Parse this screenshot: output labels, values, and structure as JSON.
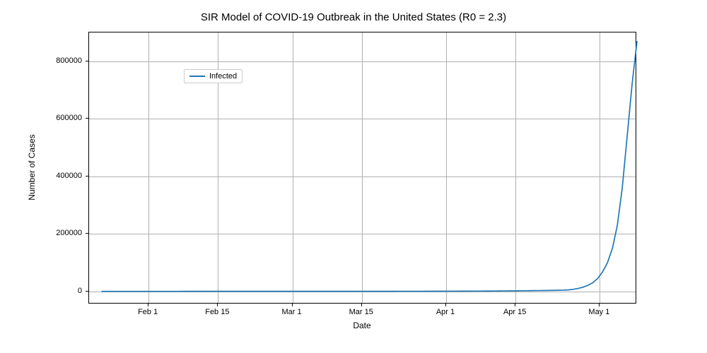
{
  "chart": {
    "type": "line",
    "title": "SIR Model of COVID-19 Outbreak in the United States (R0 = 2.3)",
    "title_fontsize": 15,
    "xlabel": "Date",
    "ylabel": "Number of Cases",
    "label_fontsize": 12,
    "tick_fontsize": 11,
    "background_color": "#ffffff",
    "spine_color": "#000000",
    "grid_color": "#b0b0b0",
    "grid_on": true,
    "line_color": "#1f77b4",
    "line_width": 1.7,
    "legend": {
      "position": "upper-left",
      "label": "Infected",
      "border_color": "#cccccc",
      "bg_color": "#ffffff"
    },
    "ylim": [
      -45000,
      900000
    ],
    "yticks": [
      0,
      200000,
      400000,
      600000,
      800000
    ],
    "ytick_labels": [
      "0",
      "200000",
      "400000",
      "600000",
      "800000"
    ],
    "xlim_days": [
      0,
      110.5
    ],
    "xtick_days": [
      12,
      26,
      41,
      55,
      72,
      86,
      103
    ],
    "xtick_labels": [
      "Feb 1",
      "Feb 15",
      "Mar 1",
      "Mar 15",
      "Apr 1",
      "Apr 15",
      "May 1"
    ],
    "series": {
      "days_start": 2.5,
      "days_end": 110.5,
      "num_points": 110,
      "values": [
        1,
        1.1,
        1.2,
        1.3,
        1.4,
        1.5,
        1.6,
        1.8,
        1.9,
        2.1,
        2.3,
        2.5,
        2.7,
        3.0,
        3.3,
        3.6,
        3.9,
        4.3,
        4.7,
        5.1,
        5.6,
        6.1,
        6.7,
        7.3,
        8.0,
        8.8,
        9.6,
        10.5,
        11.5,
        12.5,
        13.7,
        15.0,
        16.4,
        17.9,
        19.6,
        21.5,
        23.5,
        25.7,
        28.1,
        30.7,
        33.6,
        36.7,
        40.2,
        44.0,
        48.1,
        52.5,
        57.5,
        62.9,
        68.7,
        75.1,
        82.2,
        89.9,
        98.3,
        107.5,
        117.5,
        128.5,
        140.6,
        153.7,
        168.1,
        183.8,
        201,
        219.8,
        240.4,
        262.9,
        287.5,
        314.4,
        343.8,
        376,
        411.2,
        449.7,
        491.7,
        537.8,
        588.1,
        643.1,
        703.3,
        769.1,
        841.1,
        919.8,
        1005.9,
        1100,
        1203,
        1315.5,
        1438.6,
        1573.2,
        1720.4,
        1881.4,
        2057.5,
        2250,
        2460.6,
        2690.8,
        2942.6,
        3218,
        3519.1,
        3848.4,
        4208.5,
        5020,
        7000,
        10000,
        14500,
        21000,
        30000,
        45000,
        68000,
        100000,
        150000,
        230000,
        360000,
        540000,
        720000,
        870000
      ]
    }
  }
}
